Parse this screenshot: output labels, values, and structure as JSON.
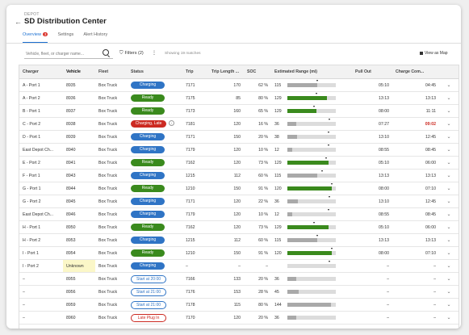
{
  "header": {
    "depot_label": "DEPOT",
    "title": "SD Distribution Center",
    "tabs": [
      {
        "label": "Overview",
        "badge": "3"
      },
      {
        "label": "Settings"
      },
      {
        "label": "Alert History"
      }
    ]
  },
  "toolbar": {
    "search_placeholder": "Vehicle, fleet, or charger name...",
    "filters_label": "Filters (2)",
    "matches_text": "Showing 19 matches",
    "view_map_label": "View as Map"
  },
  "table": {
    "columns": [
      "Charger",
      "Vehicle",
      "Fleet",
      "Status",
      "Trip",
      "Trip Length ...",
      "SOC",
      "Estimated Range (mi)",
      "Pull Out",
      "Charge Com..."
    ],
    "rows": [
      {
        "charger": "A - Port 1",
        "vehicle": "8935",
        "fleet": "Box Truck",
        "status": "Charging",
        "status_type": "charging",
        "trip": "7171",
        "trip_len": "170",
        "soc": "62 %",
        "range": "115",
        "range_fill": 0.62,
        "range_target": 0.62,
        "fill_color": "y",
        "pull_out": "05:10",
        "charge_complete": "04:45"
      },
      {
        "charger": "A - Port 2",
        "vehicle": "8936",
        "fleet": "Box Truck",
        "status": "Ready",
        "status_type": "ready",
        "trip": "7175",
        "trip_len": "85",
        "soc": "80 %",
        "range": "129",
        "range_fill": 0.82,
        "range_target": 0.6,
        "fill_color": "g",
        "pull_out": "13:13",
        "charge_complete": "13:13"
      },
      {
        "charger": "B - Port 1",
        "vehicle": "8937",
        "fleet": "Box Truck",
        "status": "Ready",
        "status_type": "ready",
        "trip": "7173",
        "trip_len": "160",
        "soc": "65 %",
        "range": "129",
        "range_fill": 0.6,
        "range_target": 0.55,
        "fill_color": "g",
        "pull_out": "08:00",
        "charge_complete": "11:11"
      },
      {
        "charger": "C - Port 2",
        "vehicle": "8938",
        "fleet": "Box Truck",
        "status": "Charging, Late",
        "status_type": "late",
        "info": "i",
        "trip": "7181",
        "trip_len": "120",
        "soc": "16 %",
        "range": "36",
        "range_fill": 0.18,
        "range_target": 0.88,
        "fill_color": "y",
        "pull_out": "07:27",
        "charge_complete": "09:02",
        "late_complete": true
      },
      {
        "charger": "D - Port 1",
        "vehicle": "8939",
        "fleet": "Box Truck",
        "status": "Charging",
        "status_type": "charging",
        "trip": "7171",
        "trip_len": "150",
        "soc": "20 %",
        "range": "38",
        "range_fill": 0.2,
        "range_target": 0.85,
        "fill_color": "y",
        "pull_out": "13:10",
        "charge_complete": "12:45"
      },
      {
        "charger": "East Depot Ch...",
        "vehicle": "8940",
        "fleet": "Box Truck",
        "status": "Charging",
        "status_type": "charging",
        "trip": "7179",
        "trip_len": "120",
        "soc": "10 %",
        "range": "12",
        "range_fill": 0.1,
        "range_target": 0.85,
        "fill_color": "y",
        "pull_out": "08:55",
        "charge_complete": "08:45"
      },
      {
        "charger": "E - Port 2",
        "vehicle": "8941",
        "fleet": "Box Truck",
        "status": "Ready",
        "status_type": "ready",
        "trip": "7162",
        "trip_len": "120",
        "soc": "73 %",
        "range": "129",
        "range_fill": 0.85,
        "range_target": 0.8,
        "fill_color": "g",
        "pull_out": "05:10",
        "charge_complete": "06:00"
      },
      {
        "charger": "F - Port 1",
        "vehicle": "8943",
        "fleet": "Box Truck",
        "status": "Charging",
        "status_type": "charging",
        "trip": "1215",
        "trip_len": "112",
        "soc": "60 %",
        "range": "115",
        "range_fill": 0.62,
        "range_target": 0.72,
        "fill_color": "y",
        "pull_out": "13:13",
        "charge_complete": "13:13"
      },
      {
        "charger": "G - Port 1",
        "vehicle": "8944",
        "fleet": "Box Truck",
        "status": "Ready",
        "status_type": "ready",
        "trip": "1210",
        "trip_len": "150",
        "soc": "91 %",
        "range": "120",
        "range_fill": 0.92,
        "range_target": 0.92,
        "fill_color": "g",
        "pull_out": "08:00",
        "charge_complete": "07:10"
      },
      {
        "charger": "G - Port 2",
        "vehicle": "8945",
        "fleet": "Box Truck",
        "status": "Charging",
        "status_type": "charging",
        "trip": "7171",
        "trip_len": "120",
        "soc": "22 %",
        "range": "36",
        "range_fill": 0.22,
        "range_target": 0.88,
        "fill_color": "y",
        "pull_out": "13:10",
        "charge_complete": "12:45"
      },
      {
        "charger": "East Depot Ch...",
        "vehicle": "8946",
        "fleet": "Box Truck",
        "status": "Charging",
        "status_type": "charging",
        "trip": "7179",
        "trip_len": "120",
        "soc": "10 %",
        "range": "12",
        "range_fill": 0.1,
        "range_target": 0.85,
        "fill_color": "y",
        "pull_out": "08:55",
        "charge_complete": "08:45"
      },
      {
        "charger": "H - Port 1",
        "vehicle": "8950",
        "fleet": "Box Truck",
        "status": "Ready",
        "status_type": "ready",
        "trip": "7162",
        "trip_len": "120",
        "soc": "73 %",
        "range": "129",
        "range_fill": 0.85,
        "range_target": 0.55,
        "fill_color": "g",
        "pull_out": "05:10",
        "charge_complete": "06:00"
      },
      {
        "charger": "H - Port 2",
        "vehicle": "8953",
        "fleet": "Box Truck",
        "status": "Charging",
        "status_type": "charging",
        "trip": "1215",
        "trip_len": "112",
        "soc": "60 %",
        "range": "115",
        "range_fill": 0.62,
        "range_target": 0.62,
        "fill_color": "y",
        "pull_out": "13:13",
        "charge_complete": "13:13"
      },
      {
        "charger": "I - Port 1",
        "vehicle": "8954",
        "fleet": "Box Truck",
        "status": "Ready",
        "status_type": "ready",
        "trip": "1210",
        "trip_len": "150",
        "soc": "91 %",
        "range": "120",
        "range_fill": 0.92,
        "range_target": 0.92,
        "fill_color": "g",
        "pull_out": "08:00",
        "charge_complete": "07:10"
      },
      {
        "charger": "I - Port 2",
        "vehicle": "Unknown",
        "vehicle_unknown": true,
        "fleet": "Box Truck",
        "status": "Charging",
        "status_type": "charging",
        "trip": "–",
        "trip_len": "–",
        "soc": "–",
        "range": "",
        "range_fill": 0,
        "range_target": 0.88,
        "fill_color": "y",
        "pull_out": "–",
        "charge_complete": "–"
      },
      {
        "charger": "–",
        "vehicle": "8955",
        "fleet": "Box Truck",
        "status": "Start at 20:00",
        "status_type": "start",
        "trip": "7166",
        "trip_len": "133",
        "soc": "20 %",
        "range": "36",
        "range_fill": 0.18,
        "range_target": 0,
        "fill_color": "y",
        "pull_out": "–",
        "charge_complete": "–"
      },
      {
        "charger": "–",
        "vehicle": "8956",
        "fleet": "Box Truck",
        "status": "Start at 21:00",
        "status_type": "start",
        "trip": "7176",
        "trip_len": "153",
        "soc": "28 %",
        "range": "45",
        "range_fill": 0.24,
        "range_target": 0,
        "fill_color": "y",
        "pull_out": "–",
        "charge_complete": "–"
      },
      {
        "charger": "–",
        "vehicle": "8959",
        "fleet": "Box Truck",
        "status": "Start at 21:00",
        "status_type": "start",
        "trip": "7178",
        "trip_len": "115",
        "soc": "80 %",
        "range": "144",
        "range_fill": 0.9,
        "range_target": 0,
        "fill_color": "y",
        "pull_out": "–",
        "charge_complete": "–"
      },
      {
        "charger": "–",
        "vehicle": "8960",
        "fleet": "Box Truck",
        "status": "Late Plug In",
        "status_type": "lateplug",
        "trip": "7170",
        "trip_len": "120",
        "soc": "20 %",
        "range": "36",
        "range_fill": 0.18,
        "range_target": 0,
        "fill_color": "y",
        "pull_out": "–",
        "charge_complete": "–"
      }
    ]
  },
  "colors": {
    "accent": "#1a6fd1",
    "charging": "#2f74c5",
    "ready": "#3a8a1d",
    "late": "#cc2a22"
  }
}
